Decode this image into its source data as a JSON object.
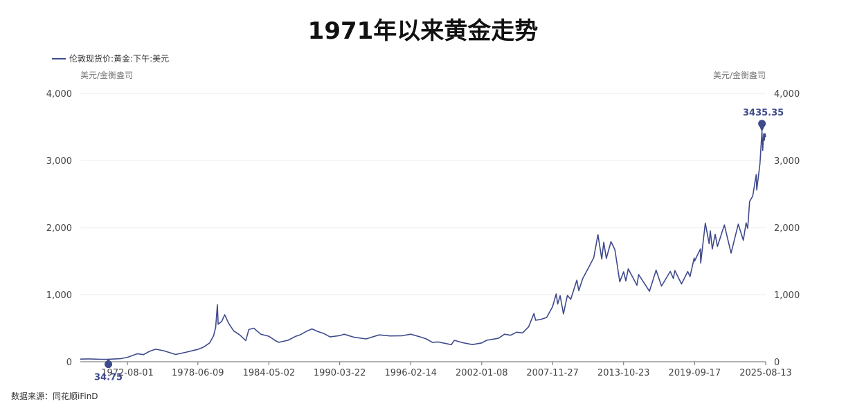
{
  "source": "数据来源：同花顺iFinD",
  "chart_data": {
    "type": "line",
    "title": "1971年以来黄金走势",
    "left_axis_unit": "美元/金衡盎司",
    "right_axis_unit": "美元/金衡盎司",
    "ylim": [
      0,
      4000
    ],
    "yticks": [
      0,
      1000,
      2000,
      3000,
      4000
    ],
    "ytick_labels": [
      "0",
      "1,000",
      "2,000",
      "3,000",
      "4,000"
    ],
    "xlim": [
      "1968-09-01",
      "2025-08-13"
    ],
    "xticks": [
      "1972-08-01",
      "1978-06-09",
      "1984-05-02",
      "1990-03-22",
      "1996-02-14",
      "2002-01-08",
      "2007-11-27",
      "2013-10-23",
      "2019-09-17",
      "2025-08-13"
    ],
    "grid": true,
    "legend_position": "top-left",
    "colors": {
      "series": "#3f4a8c",
      "grid": "#ebebeb"
    },
    "annotations": [
      {
        "label": "34.75",
        "date": "1971-01-01",
        "value": 34.75,
        "type": "min"
      },
      {
        "label": "3435.35",
        "date": "2025-04-22",
        "value": 3435.35,
        "type": "max"
      }
    ],
    "series": [
      {
        "name": "伦敦现货价:黄金:下午:美元",
        "points": [
          [
            "1968-09-01",
            39
          ],
          [
            "1969-06-01",
            42
          ],
          [
            "1970-06-01",
            36
          ],
          [
            "1971-01-01",
            37
          ],
          [
            "1972-01-01",
            45
          ],
          [
            "1972-08-01",
            66
          ],
          [
            "1973-06-01",
            120
          ],
          [
            "1973-12-01",
            106
          ],
          [
            "1974-06-01",
            155
          ],
          [
            "1974-12-01",
            187
          ],
          [
            "1975-08-01",
            165
          ],
          [
            "1976-08-01",
            108
          ],
          [
            "1977-06-01",
            140
          ],
          [
            "1978-06-01",
            183
          ],
          [
            "1978-12-01",
            220
          ],
          [
            "1979-06-01",
            280
          ],
          [
            "1979-10-01",
            390
          ],
          [
            "1979-12-01",
            512
          ],
          [
            "1980-01-21",
            850
          ],
          [
            "1980-02-15",
            560
          ],
          [
            "1980-06-01",
            600
          ],
          [
            "1980-09-01",
            700
          ],
          [
            "1981-01-01",
            570
          ],
          [
            "1981-06-01",
            460
          ],
          [
            "1981-12-01",
            400
          ],
          [
            "1982-06-01",
            315
          ],
          [
            "1982-09-01",
            480
          ],
          [
            "1983-02-01",
            500
          ],
          [
            "1983-09-01",
            410
          ],
          [
            "1984-05-02",
            380
          ],
          [
            "1984-12-01",
            310
          ],
          [
            "1985-03-01",
            290
          ],
          [
            "1985-12-01",
            320
          ],
          [
            "1986-08-01",
            380
          ],
          [
            "1986-12-01",
            400
          ],
          [
            "1987-06-01",
            450
          ],
          [
            "1987-12-01",
            490
          ],
          [
            "1988-06-01",
            450
          ],
          [
            "1988-12-01",
            420
          ],
          [
            "1989-06-01",
            370
          ],
          [
            "1990-03-22",
            390
          ],
          [
            "1990-08-01",
            410
          ],
          [
            "1991-06-01",
            365
          ],
          [
            "1992-06-01",
            340
          ],
          [
            "1993-07-01",
            400
          ],
          [
            "1994-06-01",
            385
          ],
          [
            "1995-06-01",
            388
          ],
          [
            "1996-02-14",
            410
          ],
          [
            "1996-12-01",
            370
          ],
          [
            "1997-06-01",
            340
          ],
          [
            "1997-12-01",
            290
          ],
          [
            "1998-06-01",
            295
          ],
          [
            "1999-07-01",
            255
          ],
          [
            "1999-10-01",
            320
          ],
          [
            "2000-06-01",
            285
          ],
          [
            "2001-04-01",
            256
          ],
          [
            "2002-01-08",
            280
          ],
          [
            "2002-06-01",
            320
          ],
          [
            "2003-06-01",
            350
          ],
          [
            "2003-12-01",
            410
          ],
          [
            "2004-06-01",
            395
          ],
          [
            "2004-12-01",
            440
          ],
          [
            "2005-06-01",
            430
          ],
          [
            "2005-12-01",
            520
          ],
          [
            "2006-05-12",
            720
          ],
          [
            "2006-07-01",
            620
          ],
          [
            "2006-12-01",
            630
          ],
          [
            "2007-06-01",
            660
          ],
          [
            "2007-11-27",
            820
          ],
          [
            "2008-03-17",
            1011
          ],
          [
            "2008-05-01",
            860
          ],
          [
            "2008-07-15",
            985
          ],
          [
            "2008-10-24",
            713
          ],
          [
            "2008-12-31",
            870
          ],
          [
            "2009-02-20",
            990
          ],
          [
            "2009-06-01",
            930
          ],
          [
            "2009-12-03",
            1215
          ],
          [
            "2010-02-01",
            1060
          ],
          [
            "2010-06-01",
            1240
          ],
          [
            "2010-12-01",
            1410
          ],
          [
            "2011-05-01",
            1550
          ],
          [
            "2011-09-06",
            1895
          ],
          [
            "2011-12-29",
            1530
          ],
          [
            "2012-02-29",
            1780
          ],
          [
            "2012-05-16",
            1540
          ],
          [
            "2012-10-05",
            1790
          ],
          [
            "2013-02-01",
            1670
          ],
          [
            "2013-06-28",
            1192
          ],
          [
            "2013-10-23",
            1340
          ],
          [
            "2013-12-31",
            1205
          ],
          [
            "2014-03-14",
            1385
          ],
          [
            "2014-12-01",
            1140
          ],
          [
            "2015-01-22",
            1300
          ],
          [
            "2015-12-17",
            1050
          ],
          [
            "2016-07-06",
            1366
          ],
          [
            "2016-12-15",
            1128
          ],
          [
            "2017-09-08",
            1346
          ],
          [
            "2017-12-12",
            1240
          ],
          [
            "2018-01-25",
            1360
          ],
          [
            "2018-08-16",
            1160
          ],
          [
            "2019-02-20",
            1344
          ],
          [
            "2019-05-01",
            1270
          ],
          [
            "2019-09-04",
            1546
          ],
          [
            "2019-09-17",
            1500
          ],
          [
            "2020-03-09",
            1680
          ],
          [
            "2020-03-19",
            1470
          ],
          [
            "2020-08-06",
            2067
          ],
          [
            "2020-11-30",
            1760
          ],
          [
            "2021-01-06",
            1950
          ],
          [
            "2021-03-08",
            1680
          ],
          [
            "2021-06-01",
            1900
          ],
          [
            "2021-08-09",
            1720
          ],
          [
            "2022-03-08",
            2039
          ],
          [
            "2022-09-28",
            1620
          ],
          [
            "2023-05-04",
            2050
          ],
          [
            "2023-10-05",
            1810
          ],
          [
            "2023-12-28",
            2070
          ],
          [
            "2024-02-14",
            1990
          ],
          [
            "2024-04-12",
            2390
          ],
          [
            "2024-07-17",
            2470
          ],
          [
            "2024-10-30",
            2790
          ],
          [
            "2024-11-14",
            2560
          ],
          [
            "2025-02-20",
            2950
          ],
          [
            "2025-04-22",
            3435.35
          ],
          [
            "2025-05-15",
            3150
          ],
          [
            "2025-06-13",
            3400
          ],
          [
            "2025-07-01",
            3300
          ],
          [
            "2025-07-23",
            3400
          ],
          [
            "2025-08-13",
            3350
          ]
        ]
      }
    ]
  }
}
